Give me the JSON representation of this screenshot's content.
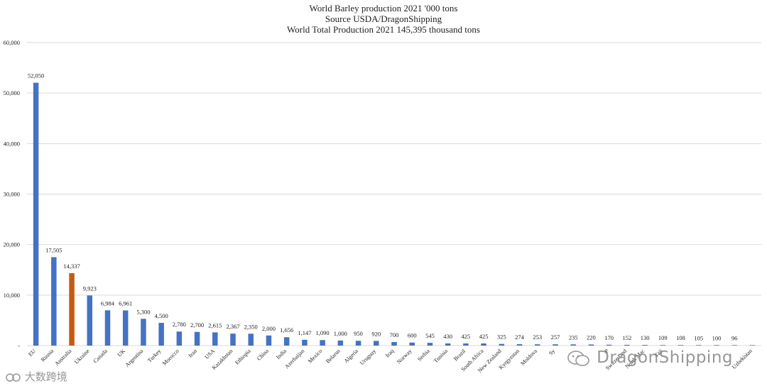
{
  "chart_data": {
    "type": "bar",
    "title_lines": [
      "World Barley production 2021 '000 tons",
      "Source USDA/DragonShipping",
      "World Total Production 2021  145,395 thousand tons"
    ],
    "xlabel": "",
    "ylabel": "",
    "ylim": [
      0,
      60000
    ],
    "y_ticks": [
      0,
      10000,
      20000,
      30000,
      40000,
      50000,
      60000
    ],
    "y_tick_labels": [
      "-",
      "10,000",
      "20,000",
      "30,000",
      "40,000",
      "50,000",
      "60,000"
    ],
    "grid": true,
    "legend": "none",
    "colors": {
      "default": "#4472c4",
      "highlight": "#c55a11",
      "grid": "#d9d9d9",
      "text": "#222222"
    },
    "highlight_index": 2,
    "categories": [
      "EU",
      "Russia",
      "Australia",
      "Ukraine",
      "Canada",
      "UK",
      "Argentina",
      "Turkey",
      "Morocco",
      "Iran",
      "USA",
      "Kazakhstan",
      "Ethiopia",
      "China",
      "India",
      "Azerbaijan",
      "Mexico",
      "Belarus",
      "Algeria",
      "Uruguay",
      "Iraq",
      "Norway",
      "Serbia",
      "Tunisia",
      "Brazil",
      "South Africa",
      "New Zealand",
      "Kyrgyzstan",
      "Moldova",
      "Sy",
      "",
      "",
      "P",
      "Switzerland",
      "North Mac",
      "Taji",
      "",
      "",
      "",
      "",
      "Uzbekistan"
    ],
    "values": [
      52050,
      17505,
      14337,
      9923,
      6984,
      6961,
      5300,
      4500,
      2780,
      2700,
      2615,
      2367,
      2350,
      2000,
      1656,
      1147,
      1090,
      1000,
      950,
      920,
      700,
      600,
      545,
      430,
      425,
      425,
      325,
      274,
      253,
      257,
      235,
      220,
      170,
      152,
      130,
      109,
      108,
      105,
      100,
      96,
      96
    ],
    "value_labels": [
      "52,050",
      "17,505",
      "14,337",
      "9,923",
      "6,984",
      "6,961",
      "5,300",
      "4,500",
      "2,780",
      "2,700",
      "2,615",
      "2,367",
      "2,350",
      "2,000",
      "1,656",
      "1,147",
      "1,090",
      "1,000",
      "950",
      "920",
      "700",
      "600",
      "545",
      "430",
      "425",
      "425",
      "325",
      "274",
      "253",
      "257",
      "235",
      "220",
      "170",
      "152",
      "130",
      "109",
      "108",
      "105",
      "100",
      "96",
      ""
    ]
  },
  "watermarks": {
    "right": "DragonShipping",
    "left": "大数跨境"
  }
}
